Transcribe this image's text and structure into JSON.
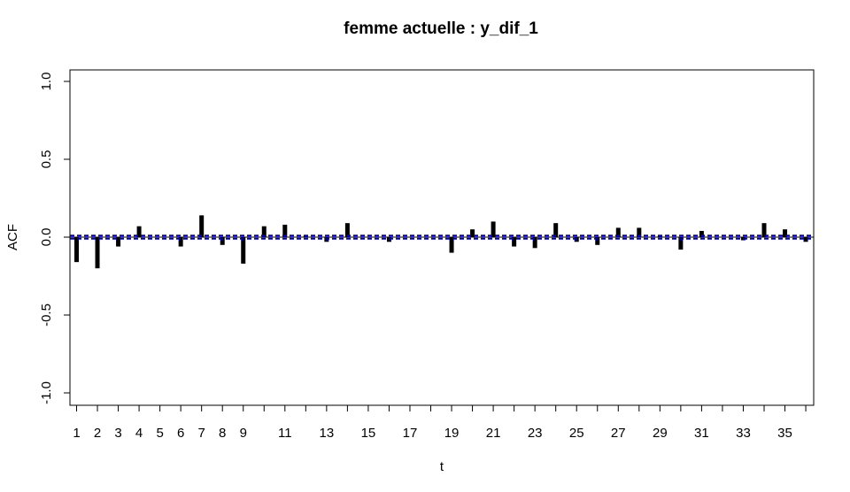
{
  "chart_data": {
    "type": "bar",
    "title": "femme actuelle : y_dif_1",
    "xlabel": "t",
    "ylabel": "ACF",
    "xlim": [
      1,
      36
    ],
    "ylim": [
      -1.0,
      1.0
    ],
    "x_ticks": [
      1,
      2,
      3,
      4,
      5,
      6,
      7,
      8,
      9,
      11,
      13,
      15,
      17,
      19,
      21,
      23,
      25,
      27,
      29,
      31,
      33,
      35
    ],
    "y_ticks": [
      "-1.0",
      "-0.5",
      "0.0",
      "0.5",
      "1.0"
    ],
    "confidence_band": 0.01,
    "lags": [
      1,
      2,
      3,
      4,
      5,
      6,
      7,
      8,
      9,
      10,
      11,
      12,
      13,
      14,
      15,
      16,
      17,
      18,
      19,
      20,
      21,
      22,
      23,
      24,
      25,
      26,
      27,
      28,
      29,
      30,
      31,
      32,
      33,
      34,
      35,
      36
    ],
    "values": [
      -0.16,
      -0.2,
      -0.06,
      0.07,
      0.0,
      -0.06,
      0.14,
      -0.05,
      -0.17,
      0.07,
      0.08,
      0.01,
      -0.03,
      0.09,
      0.0,
      -0.03,
      0.0,
      0.0,
      -0.1,
      0.05,
      0.1,
      -0.06,
      -0.07,
      0.09,
      -0.03,
      -0.05,
      0.06,
      0.06,
      0.01,
      -0.08,
      0.04,
      0.0,
      -0.02,
      0.09,
      0.05,
      -0.03
    ],
    "colors": {
      "bars": "#000000",
      "band": "#0000cc",
      "zero_line": "#000000"
    }
  }
}
